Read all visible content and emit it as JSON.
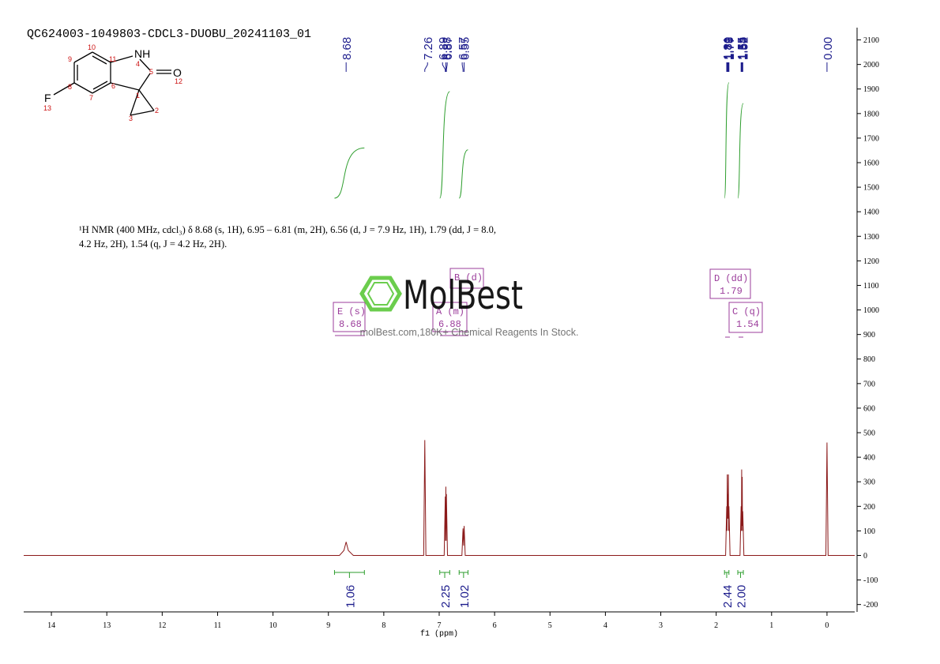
{
  "chart_data": {
    "type": "line",
    "title": "QC624003-1049803-CDCL3-DUOBU_20241103_01",
    "x_label": "f1 (ppm)",
    "description": "¹H NMR (400 MHz, cdcl₃) δ 8.68 (s, 1H), 6.95 – 6.81 (m, 2H), 6.56 (d, J = 7.9 Hz, 1H), 1.79 (dd, J = 8.0, 4.2 Hz, 2H), 1.54 (q, J = 4.2 Hz, 2H).",
    "xlim": [
      14.5,
      -0.5
    ],
    "xticks": [
      14,
      13,
      12,
      11,
      10,
      9,
      8,
      7,
      6,
      5,
      4,
      3,
      2,
      1,
      0
    ],
    "ylim": [
      -230,
      2150
    ],
    "yticks": [
      -200,
      -100,
      0,
      100,
      200,
      300,
      400,
      500,
      600,
      700,
      800,
      900,
      1000,
      1100,
      1200,
      1300,
      1400,
      1500,
      1600,
      1700,
      1800,
      1900,
      2000,
      2100
    ],
    "color": "#8b1a1a",
    "x": [
      14.5,
      8.8,
      8.72,
      8.68,
      8.64,
      8.55,
      7.28,
      7.26,
      7.24,
      6.91,
      6.89,
      6.885,
      6.88,
      6.875,
      6.87,
      6.85,
      6.59,
      6.57,
      6.56,
      6.55,
      6.53,
      1.83,
      1.81,
      1.805,
      1.8,
      1.795,
      1.79,
      1.785,
      1.78,
      1.775,
      1.77,
      1.75,
      1.57,
      1.55,
      1.545,
      1.54,
      1.535,
      1.53,
      1.525,
      1.52,
      1.5,
      0.02,
      0,
      -0.02,
      -0.5
    ],
    "values": [
      0,
      0,
      20,
      55,
      20,
      0,
      0,
      470,
      0,
      0,
      240,
      60,
      280,
      60,
      250,
      0,
      0,
      110,
      40,
      120,
      0,
      0,
      200,
      100,
      330,
      150,
      250,
      150,
      330,
      100,
      200,
      0,
      0,
      200,
      100,
      350,
      120,
      320,
      100,
      180,
      0,
      0,
      460,
      0,
      0
    ],
    "peaks": {
      "values": [
        8.68,
        7.26,
        6.89,
        6.88,
        6.87,
        6.57,
        6.55,
        1.81,
        1.8,
        1.79,
        1.78,
        1.77,
        1.55,
        1.54,
        1.53,
        1.52,
        0
      ],
      "value_labels": [
        "8.68",
        "7.26",
        "6.89",
        "6.88",
        "6.87",
        "6.57",
        "6.55",
        "1.81",
        "1.80",
        "1.79",
        "1.78",
        "1.77",
        "1.55",
        "1.54",
        "1.53",
        "1.52",
        "0.00"
      ]
    },
    "integrals": {
      "ranges": [
        [
          8.89,
          8.35
        ],
        [
          6.99,
          6.81
        ],
        [
          6.64,
          6.48
        ],
        [
          1.85,
          1.77
        ],
        [
          1.61,
          1.51
        ]
      ],
      "values": [
        1.06,
        2.25,
        1.02,
        2.44,
        2
      ],
      "value_labels": [
        "1.06",
        "2.25",
        "1.02",
        "2.44",
        "2.00"
      ]
    },
    "multiplets": [
      {
        "label": "E (s)",
        "shift": 8.68
      },
      {
        "label": "B (d)"
      },
      {
        "label": "A (m)",
        "shift": 6.88
      },
      {
        "label": "D (dd)",
        "shift": 1.79
      },
      {
        "label": "C (q)",
        "shift": 1.54
      }
    ]
  },
  "molecule": {
    "atom_labels": [
      "NH",
      "O",
      "F"
    ],
    "atom_numbers": [
      "1",
      "2",
      "3",
      "4",
      "5",
      "6",
      "7",
      "8",
      "9",
      "10",
      "11",
      "12",
      "13"
    ]
  },
  "watermark": {
    "brand": "MolBest",
    "tagline": "molBest.com,180K+ Chemical Reagents In Stock."
  }
}
